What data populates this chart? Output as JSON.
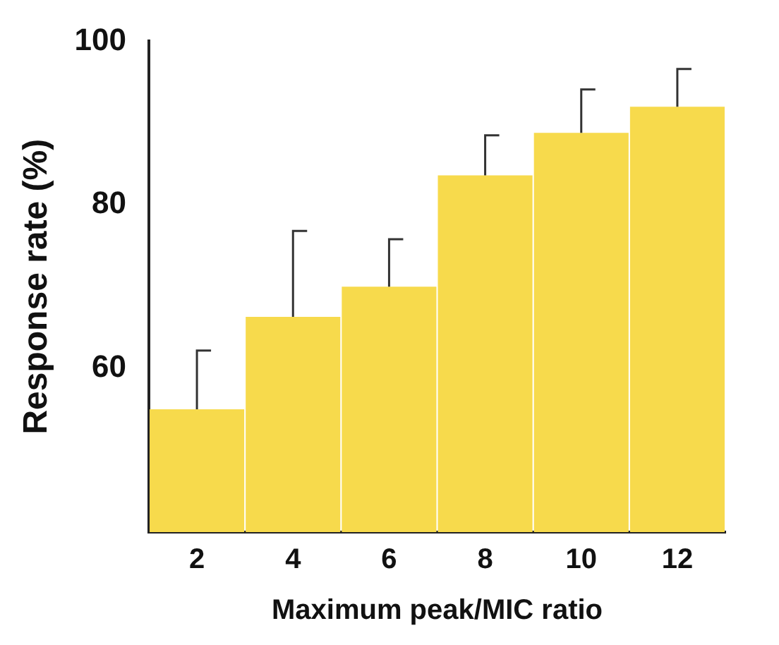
{
  "chart_data": {
    "type": "bar",
    "xlabel": "Maximum peak/MIC ratio",
    "ylabel": "Response rate (%)",
    "categories": [
      "2",
      "4",
      "6",
      "8",
      "10",
      "12"
    ],
    "values": [
      55,
      66.3,
      70,
      83.6,
      88.8,
      92
    ],
    "errors": [
      [
        55,
        62.2
      ],
      [
        66.3,
        76.8
      ],
      [
        70,
        75.8
      ],
      [
        83.6,
        88.5
      ],
      [
        88.8,
        94.1
      ],
      [
        92,
        96.6
      ]
    ],
    "color": "#f7da4c",
    "ylim": [
      40,
      100
    ],
    "yticks": [
      60,
      80,
      100
    ],
    "grid": false
  }
}
